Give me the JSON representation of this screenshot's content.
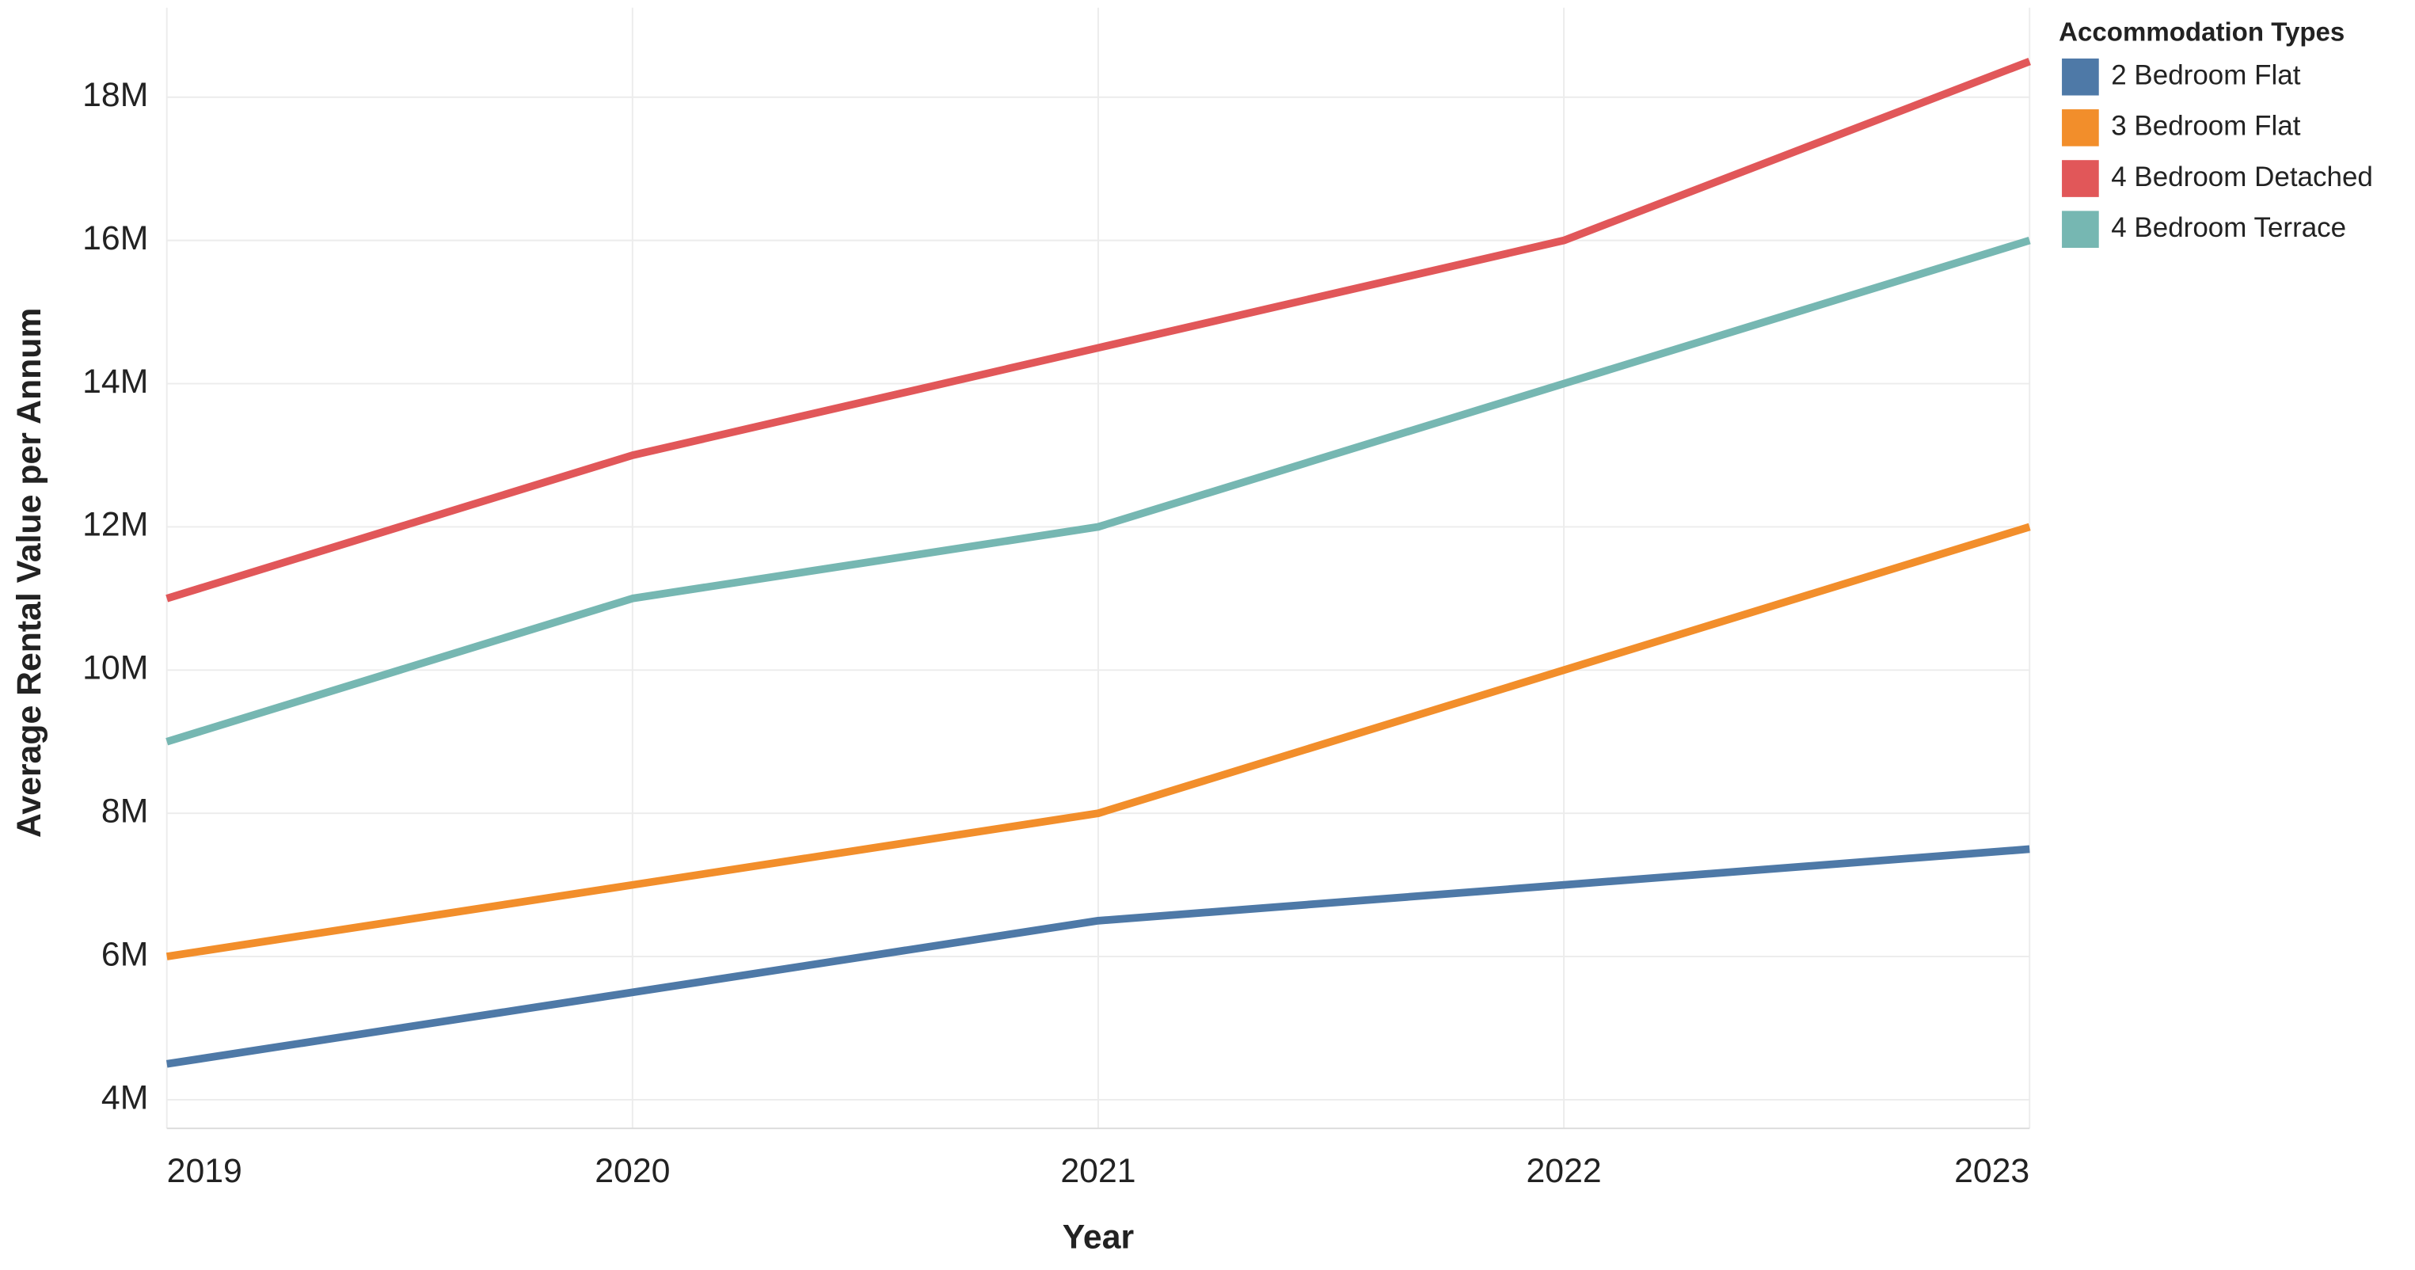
{
  "chart_data": {
    "type": "line",
    "x_label": "Year",
    "y_label": "Average Rental Value per Annum",
    "legend_title": "Accommodation Types",
    "legend_position": "top-right",
    "grid": true,
    "x": [
      2019,
      2020,
      2021,
      2022,
      2023
    ],
    "xlim": [
      2019,
      2023
    ],
    "xticks": [
      2019,
      2020,
      2021,
      2022,
      2023
    ],
    "ylim": [
      3600000,
      19250000
    ],
    "yticks": [
      {
        "value": 4000000,
        "label": "4M"
      },
      {
        "value": 6000000,
        "label": "6M"
      },
      {
        "value": 8000000,
        "label": "8M"
      },
      {
        "value": 10000000,
        "label": "10M"
      },
      {
        "value": 12000000,
        "label": "12M"
      },
      {
        "value": 14000000,
        "label": "14M"
      },
      {
        "value": 16000000,
        "label": "16M"
      },
      {
        "value": 18000000,
        "label": "18M"
      }
    ],
    "series": [
      {
        "name": "2 Bedroom Flat",
        "color": "#4e79a7",
        "values": [
          4500000,
          5500000,
          6500000,
          7000000,
          7500000
        ]
      },
      {
        "name": "3 Bedroom Flat",
        "color": "#f28e2b",
        "values": [
          6000000,
          7000000,
          8000000,
          10000000,
          12000000
        ]
      },
      {
        "name": "4 Bedroom Detached",
        "color": "#e15759",
        "values": [
          11000000,
          13000000,
          14500000,
          16000000,
          18500000
        ]
      },
      {
        "name": "4 Bedroom Terrace",
        "color": "#76b7b2",
        "values": [
          9000000,
          11000000,
          12000000,
          14000000,
          16000000
        ]
      }
    ]
  }
}
